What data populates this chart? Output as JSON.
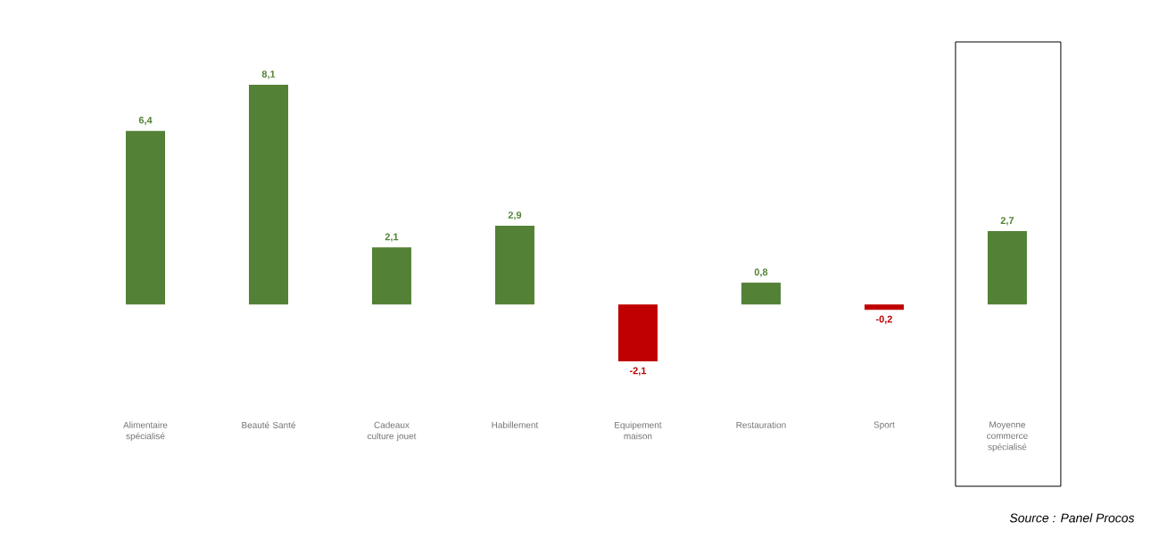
{
  "chart_data": {
    "type": "bar",
    "categories": [
      "Alimentaire spécialisé",
      "Beauté Santé",
      "Cadeaux culture jouet",
      "Habillement",
      "Equipement maison",
      "Restauration",
      "Sport",
      "Moyenne commerce spécialisé"
    ],
    "values": [
      6.4,
      8.1,
      2.1,
      2.9,
      -2.1,
      0.8,
      -0.2,
      2.7
    ],
    "colors": [
      "#538135",
      "#538135",
      "#538135",
      "#538135",
      "#c00000",
      "#538135",
      "#c00000",
      "#538135"
    ],
    "value_labels": [
      "6,4",
      "8,1",
      "2,1",
      "2,9",
      "-2,1",
      "0,8",
      "-0,2",
      "2,7"
    ],
    "annotations": [
      "Source : Panel Procos"
    ]
  }
}
